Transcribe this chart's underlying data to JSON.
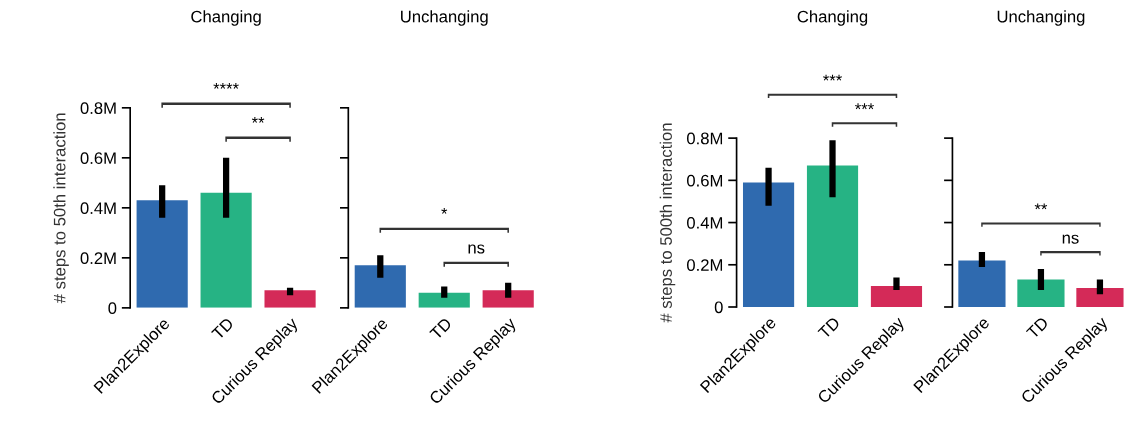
{
  "chart_data": [
    {
      "type": "bar",
      "title": "Changing",
      "ylabel": "# steps to 50th interaction",
      "categories": [
        "Plan2Explore",
        "TD",
        "Curious Replay"
      ],
      "values": [
        0.43,
        0.46,
        0.07
      ],
      "colors": [
        "#2f6aaf",
        "#26b384",
        "#d42a58"
      ],
      "errors": [
        [
          0.36,
          0.49
        ],
        [
          0.36,
          0.6
        ],
        [
          0.05,
          0.08
        ]
      ],
      "ylim": [
        0,
        0.8
      ],
      "yticks": [
        0,
        {
          "value": 0.2,
          "label": "0.2M"
        },
        {
          "value": 0.4,
          "label": "0.4M"
        },
        {
          "value": 0.6,
          "label": "0.6M"
        },
        {
          "value": 0.8,
          "label": "0.8M"
        }
      ],
      "annotations": [
        "****",
        "**"
      ],
      "grid": false,
      "legend": false
    },
    {
      "type": "bar",
      "title": "Unchanging",
      "categories": [
        "Plan2Explore",
        "TD",
        "Curious Replay"
      ],
      "values": [
        0.17,
        0.06,
        0.07
      ],
      "colors": [
        "#2f6aaf",
        "#26b384",
        "#d42a58"
      ],
      "errors": [
        [
          0.12,
          0.21
        ],
        [
          0.04,
          0.085
        ],
        [
          0.04,
          0.1
        ]
      ],
      "ylim": [
        0,
        0.8
      ],
      "yticks": [
        {
          "value": 0,
          "label": null
        },
        {
          "value": 0.2,
          "label": null
        },
        {
          "value": 0.4,
          "label": null
        },
        {
          "value": 0.6,
          "label": null
        },
        {
          "value": 0.8,
          "label": null
        }
      ],
      "tick_labels": "x",
      "annotations": [
        "*",
        "ns"
      ],
      "grid": false,
      "legend": false
    },
    {
      "type": "bar",
      "title": "Changing",
      "ylabel": "# steps to 500th interaction",
      "categories": [
        "Plan2Explore",
        "TD",
        "Curious Replay"
      ],
      "values": [
        0.59,
        0.67,
        0.1
      ],
      "colors": [
        "#2f6aaf",
        "#26b384",
        "#d42a58"
      ],
      "errors": [
        [
          0.48,
          0.66
        ],
        [
          0.52,
          0.79
        ],
        [
          0.08,
          0.14
        ]
      ],
      "ylim": [
        0,
        0.8
      ],
      "yticks": [
        0,
        {
          "value": 0.2,
          "label": "0.2M"
        },
        {
          "value": 0.4,
          "label": "0.4M"
        },
        {
          "value": 0.6,
          "label": "0.6M"
        },
        {
          "value": 0.8,
          "label": "0.8M"
        }
      ],
      "annotations": [
        "***",
        "***"
      ],
      "grid": false,
      "legend": false
    },
    {
      "type": "bar",
      "title": "Unchanging",
      "categories": [
        "Plan2Explore",
        "TD",
        "Curious Replay"
      ],
      "values": [
        0.22,
        0.13,
        0.09
      ],
      "colors": [
        "#2f6aaf",
        "#26b384",
        "#d42a58"
      ],
      "errors": [
        [
          0.19,
          0.26
        ],
        [
          0.08,
          0.18
        ],
        [
          0.06,
          0.13
        ]
      ],
      "ylim": [
        0,
        0.8
      ],
      "yticks": [
        {
          "value": 0,
          "label": null
        },
        {
          "value": 0.2,
          "label": null
        },
        {
          "value": 0.4,
          "label": null
        },
        {
          "value": 0.6,
          "label": null
        },
        {
          "value": 0.8,
          "label": null
        }
      ],
      "tick_labels": "x",
      "annotations": [
        "**",
        "ns"
      ],
      "grid": false,
      "legend": false
    }
  ]
}
